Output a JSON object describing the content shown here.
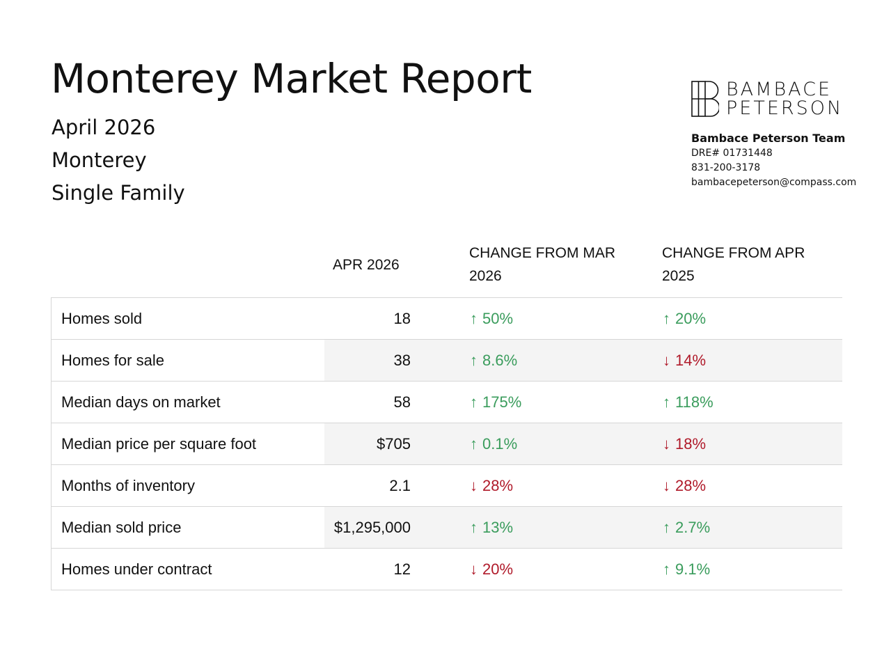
{
  "report": {
    "title": "Monterey Market Report",
    "month": "April 2026",
    "area": "Monterey",
    "property_type": "Single Family"
  },
  "brand": {
    "logo_line1": "BAMBACE",
    "logo_line2": "PETERSON",
    "team": "Bambace Peterson Team",
    "dre": "DRE# 01731448",
    "phone": "831-200-3178",
    "email": "bambacepeterson@compass.com"
  },
  "colors": {
    "up": "#3a9c5c",
    "down": "#b01a2a"
  },
  "table": {
    "headers": [
      "",
      "APR 2026",
      "CHANGE FROM MAR 2026",
      "CHANGE FROM APR 2025"
    ],
    "rows": [
      {
        "label": "Homes sold",
        "value": "18",
        "mar": {
          "dir": "up",
          "text": "50%"
        },
        "yoy": {
          "dir": "up",
          "text": "20%"
        }
      },
      {
        "label": "Homes for sale",
        "value": "38",
        "mar": {
          "dir": "up",
          "text": "8.6%"
        },
        "yoy": {
          "dir": "down",
          "text": "14%"
        }
      },
      {
        "label": "Median days on market",
        "value": "58",
        "mar": {
          "dir": "up",
          "text": "175%"
        },
        "yoy": {
          "dir": "up",
          "text": "118%"
        }
      },
      {
        "label": "Median price per square foot",
        "value": "$705",
        "mar": {
          "dir": "up",
          "text": "0.1%"
        },
        "yoy": {
          "dir": "down",
          "text": "18%"
        }
      },
      {
        "label": "Months of inventory",
        "value": "2.1",
        "mar": {
          "dir": "down",
          "text": "28%"
        },
        "yoy": {
          "dir": "down",
          "text": "28%"
        }
      },
      {
        "label": "Median sold price",
        "value": "$1,295,000",
        "mar": {
          "dir": "up",
          "text": "13%"
        },
        "yoy": {
          "dir": "up",
          "text": "2.7%"
        }
      },
      {
        "label": "Homes under contract",
        "value": "12",
        "mar": {
          "dir": "down",
          "text": "20%"
        },
        "yoy": {
          "dir": "up",
          "text": "9.1%"
        }
      }
    ]
  }
}
